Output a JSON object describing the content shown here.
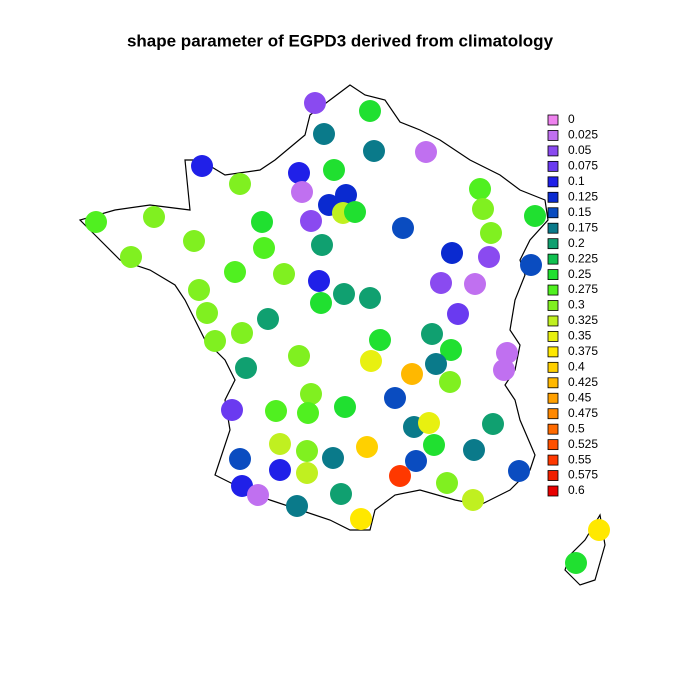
{
  "chart_data": {
    "type": "map",
    "title": "shape parameter of EGPD3 derived from climatology",
    "legend": {
      "values": [
        0,
        0.025,
        0.05,
        0.075,
        0.1,
        0.125,
        0.15,
        0.175,
        0.2,
        0.225,
        0.25,
        0.275,
        0.3,
        0.325,
        0.35,
        0.375,
        0.4,
        0.425,
        0.45,
        0.475,
        0.5,
        0.525,
        0.55,
        0.575,
        0.6
      ],
      "colors": [
        "#ee82ee",
        "#c070f0",
        "#8a4af0",
        "#6a3af0",
        "#2020e8",
        "#0a2ad0",
        "#0a4cc0",
        "#0a7a8a",
        "#10a070",
        "#10c050",
        "#20e030",
        "#50f020",
        "#80f020",
        "#c0f020",
        "#e8f010",
        "#ffe800",
        "#ffd000",
        "#ffb800",
        "#ffa000",
        "#ff8800",
        "#ff6a00",
        "#ff5000",
        "#ff3800",
        "#f02000",
        "#e80000"
      ]
    },
    "points": [
      0.05,
      0.25,
      0.175,
      0.175,
      0.025,
      0.1,
      0.3,
      0.1,
      0.25,
      0.025,
      0.125,
      0.125,
      0.325,
      0.25,
      0.05,
      0.275,
      0.3,
      0.25,
      0.275,
      0.3,
      0.25,
      0.15,
      0.3,
      0.3,
      0.275,
      0.2,
      0.125,
      0.05,
      0.15,
      0.3,
      0.275,
      0.3,
      0.1,
      0.05,
      0.025,
      0.3,
      0.2,
      0.2,
      0.25,
      0.3,
      0.2,
      0.075,
      0.3,
      0.3,
      0.25,
      0.2,
      0.25,
      0.025,
      0.3,
      0.35,
      0.175,
      0.2,
      0.025,
      0.425,
      0.3,
      0.3,
      0.15,
      0.075,
      0.275,
      0.275,
      0.25,
      0.175,
      0.35,
      0.2,
      0.325,
      0.3,
      0.175,
      0.4,
      0.25,
      0.175,
      0.15,
      0.1,
      0.325,
      0.15,
      0.55,
      0.15,
      0.1,
      0.025,
      0.2,
      0.3,
      0.325,
      0.175,
      0.375,
      0.375,
      0.25
    ]
  }
}
